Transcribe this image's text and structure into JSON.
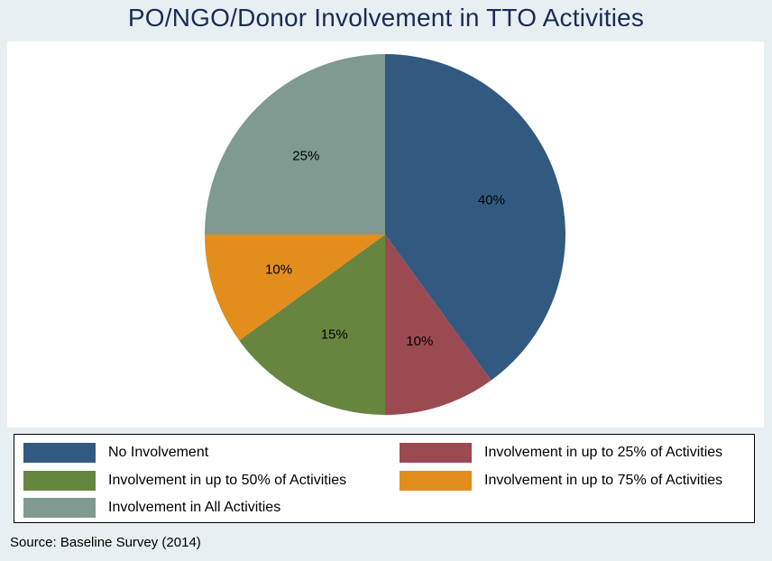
{
  "chart_data": {
    "type": "pie",
    "title": "PO/NGO/Donor Involvement in TTO Activities",
    "slices": [
      {
        "name": "No Involvement",
        "value": 40,
        "label": "40%",
        "color": "#325a80"
      },
      {
        "name": "Involvement in up to 25% of Activities",
        "value": 10,
        "label": "10%",
        "color": "#9c4a52"
      },
      {
        "name": "Involvement in up to 50% of Activities",
        "value": 15,
        "label": "15%",
        "color": "#68853f"
      },
      {
        "name": "Involvement in up to 75% of Activities",
        "value": 10,
        "label": "10%",
        "color": "#e38d1d"
      },
      {
        "name": "Involvement in All Activities",
        "value": 25,
        "label": "25%",
        "color": "#7f9a91"
      }
    ],
    "legend_position": "bottom",
    "source": "Source: Baseline Survey (2014)"
  }
}
